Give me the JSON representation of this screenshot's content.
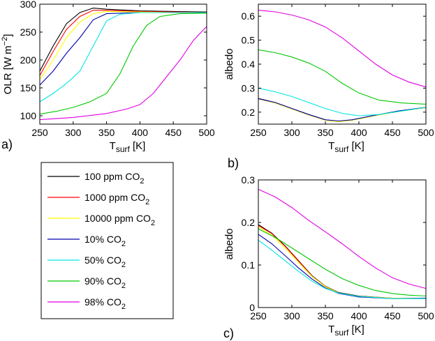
{
  "chart_data": [
    {
      "id": "a",
      "panel_label": "a)",
      "type": "line",
      "ylabel_main": "OLR [W m",
      "ylabel_sup": "−2",
      "ylabel_close": "]",
      "xlabel_main": "T",
      "xlabel_sub": "surf",
      "xlabel_unit": " [K]",
      "xlim": [
        250,
        500
      ],
      "ylim": [
        85,
        300
      ],
      "xticks": [
        250,
        300,
        350,
        400,
        450,
        500
      ],
      "yticks": [
        100,
        150,
        200,
        250,
        300
      ],
      "series": [
        {
          "name": "100 ppm CO2",
          "color": "#000000",
          "points": [
            [
              250,
              180
            ],
            [
              270,
              225
            ],
            [
              290,
              265
            ],
            [
              310,
              285
            ],
            [
              330,
              293
            ],
            [
              350,
              291
            ],
            [
              400,
              288
            ],
            [
              450,
              287
            ],
            [
              500,
              286
            ]
          ]
        },
        {
          "name": "1000 ppm CO2",
          "color": "#ff0000",
          "points": [
            [
              250,
              172
            ],
            [
              270,
              215
            ],
            [
              290,
              255
            ],
            [
              310,
              278
            ],
            [
              330,
              289
            ],
            [
              350,
              289
            ],
            [
              400,
              287
            ],
            [
              450,
              286
            ],
            [
              500,
              285
            ]
          ]
        },
        {
          "name": "10000 ppm CO2",
          "color": "#ffff00",
          "points": [
            [
              250,
              165
            ],
            [
              270,
              200
            ],
            [
              290,
              240
            ],
            [
              310,
              268
            ],
            [
              330,
              283
            ],
            [
              350,
              287
            ],
            [
              400,
              286
            ],
            [
              450,
              285
            ],
            [
              500,
              285
            ]
          ]
        },
        {
          "name": "10% CO2",
          "color": "#0000b0",
          "points": [
            [
              250,
              155
            ],
            [
              270,
              180
            ],
            [
              290,
              212
            ],
            [
              310,
              240
            ],
            [
              330,
              272
            ],
            [
              350,
              283
            ],
            [
              400,
              285
            ],
            [
              450,
              285
            ],
            [
              500,
              285
            ]
          ]
        },
        {
          "name": "50% CO2",
          "color": "#00e5e5",
          "points": [
            [
              250,
              125
            ],
            [
              270,
              140
            ],
            [
              290,
              158
            ],
            [
              310,
              180
            ],
            [
              330,
              225
            ],
            [
              350,
              270
            ],
            [
              370,
              282
            ],
            [
              400,
              285
            ],
            [
              450,
              285
            ],
            [
              500,
              285
            ]
          ]
        },
        {
          "name": "90% CO2",
          "color": "#00c800",
          "points": [
            [
              250,
              103
            ],
            [
              275,
              108
            ],
            [
              300,
              115
            ],
            [
              325,
              125
            ],
            [
              350,
              140
            ],
            [
              370,
              175
            ],
            [
              390,
              225
            ],
            [
              410,
              262
            ],
            [
              430,
              278
            ],
            [
              460,
              283
            ],
            [
              500,
              284
            ]
          ]
        },
        {
          "name": "98% CO2",
          "color": "#e000e0",
          "points": [
            [
              250,
              93
            ],
            [
              300,
              97
            ],
            [
              350,
              104
            ],
            [
              380,
              112
            ],
            [
              400,
              120
            ],
            [
              420,
              140
            ],
            [
              440,
              170
            ],
            [
              460,
              200
            ],
            [
              480,
              235
            ],
            [
              500,
              260
            ]
          ]
        }
      ]
    },
    {
      "id": "b",
      "panel_label": "b)",
      "type": "line",
      "ylabel": "albedo",
      "xlabel_main": "T",
      "xlabel_sub": "surf",
      "xlabel_unit": " [K]",
      "xlim": [
        250,
        500
      ],
      "ylim": [
        0.15,
        0.65
      ],
      "xticks": [
        250,
        300,
        350,
        400,
        450,
        500
      ],
      "yticks": [
        0.2,
        0.3,
        0.4,
        0.5,
        0.6
      ],
      "series": [
        {
          "name": "100 ppm CO2",
          "color": "#000000",
          "points": [
            [
              250,
              0.257
            ],
            [
              275,
              0.24
            ],
            [
              300,
              0.215
            ],
            [
              325,
              0.19
            ],
            [
              350,
              0.168
            ],
            [
              370,
              0.162
            ],
            [
              390,
              0.168
            ],
            [
              420,
              0.185
            ],
            [
              460,
              0.205
            ],
            [
              500,
              0.22
            ]
          ]
        },
        {
          "name": "1000 ppm CO2",
          "color": "#ff0000",
          "points": [
            [
              250,
              0.256
            ],
            [
              275,
              0.239
            ],
            [
              300,
              0.214
            ],
            [
              325,
              0.189
            ],
            [
              350,
              0.167
            ],
            [
              370,
              0.161
            ],
            [
              390,
              0.167
            ],
            [
              420,
              0.184
            ],
            [
              460,
              0.204
            ],
            [
              500,
              0.219
            ]
          ]
        },
        {
          "name": "10000 ppm CO2",
          "color": "#ffff00",
          "points": [
            [
              250,
              0.255
            ],
            [
              275,
              0.238
            ],
            [
              300,
              0.213
            ],
            [
              325,
              0.188
            ],
            [
              350,
              0.166
            ],
            [
              370,
              0.16
            ],
            [
              390,
              0.166
            ],
            [
              420,
              0.183
            ],
            [
              460,
              0.203
            ],
            [
              500,
              0.219
            ]
          ]
        },
        {
          "name": "10% CO2",
          "color": "#0000b0",
          "points": [
            [
              250,
              0.256
            ],
            [
              275,
              0.24
            ],
            [
              300,
              0.215
            ],
            [
              325,
              0.19
            ],
            [
              350,
              0.168
            ],
            [
              370,
              0.163
            ],
            [
              390,
              0.168
            ],
            [
              420,
              0.185
            ],
            [
              460,
              0.205
            ],
            [
              500,
              0.22
            ]
          ]
        },
        {
          "name": "50% CO2",
          "color": "#00e5e5",
          "points": [
            [
              250,
              0.3
            ],
            [
              275,
              0.285
            ],
            [
              300,
              0.265
            ],
            [
              325,
              0.24
            ],
            [
              350,
              0.215
            ],
            [
              375,
              0.195
            ],
            [
              400,
              0.185
            ],
            [
              430,
              0.19
            ],
            [
              465,
              0.205
            ],
            [
              500,
              0.22
            ]
          ]
        },
        {
          "name": "90% CO2",
          "color": "#00c800",
          "points": [
            [
              250,
              0.46
            ],
            [
              275,
              0.448
            ],
            [
              300,
              0.43
            ],
            [
              325,
              0.405
            ],
            [
              350,
              0.37
            ],
            [
              375,
              0.32
            ],
            [
              400,
              0.28
            ],
            [
              430,
              0.25
            ],
            [
              465,
              0.238
            ],
            [
              500,
              0.233
            ]
          ]
        },
        {
          "name": "98% CO2",
          "color": "#e000e0",
          "points": [
            [
              250,
              0.625
            ],
            [
              275,
              0.618
            ],
            [
              300,
              0.605
            ],
            [
              325,
              0.585
            ],
            [
              350,
              0.555
            ],
            [
              375,
              0.51
            ],
            [
              400,
              0.455
            ],
            [
              425,
              0.4
            ],
            [
              450,
              0.355
            ],
            [
              475,
              0.325
            ],
            [
              500,
              0.305
            ]
          ]
        }
      ]
    },
    {
      "id": "c",
      "panel_label": "c)",
      "type": "line",
      "ylabel": "albedo",
      "xlabel_main": "T",
      "xlabel_sub": "surf",
      "xlabel_unit": " [K]",
      "xlim": [
        250,
        500
      ],
      "ylim": [
        0,
        0.3
      ],
      "xticks": [
        250,
        300,
        350,
        400,
        450,
        500
      ],
      "yticks": [
        0,
        0.1,
        0.2,
        0.3
      ],
      "series": [
        {
          "name": "100 ppm CO2",
          "color": "#000000",
          "points": [
            [
              250,
              0.195
            ],
            [
              270,
              0.175
            ],
            [
              290,
              0.145
            ],
            [
              310,
              0.11
            ],
            [
              330,
              0.075
            ],
            [
              350,
              0.05
            ],
            [
              370,
              0.035
            ],
            [
              400,
              0.027
            ],
            [
              450,
              0.022
            ],
            [
              500,
              0.022
            ]
          ]
        },
        {
          "name": "1000 ppm CO2",
          "color": "#ff0000",
          "points": [
            [
              250,
              0.193
            ],
            [
              270,
              0.174
            ],
            [
              290,
              0.144
            ],
            [
              310,
              0.109
            ],
            [
              330,
              0.074
            ],
            [
              350,
              0.049
            ],
            [
              370,
              0.034
            ],
            [
              400,
              0.026
            ],
            [
              450,
              0.022
            ],
            [
              500,
              0.022
            ]
          ]
        },
        {
          "name": "10000 ppm CO2",
          "color": "#ffff00",
          "points": [
            [
              250,
              0.19
            ],
            [
              270,
              0.17
            ],
            [
              290,
              0.14
            ],
            [
              310,
              0.106
            ],
            [
              330,
              0.073
            ],
            [
              350,
              0.049
            ],
            [
              370,
              0.034
            ],
            [
              400,
              0.026
            ],
            [
              450,
              0.022
            ],
            [
              500,
              0.022
            ]
          ]
        },
        {
          "name": "10% CO2",
          "color": "#0000b0",
          "points": [
            [
              250,
              0.172
            ],
            [
              270,
              0.15
            ],
            [
              290,
              0.122
            ],
            [
              310,
              0.093
            ],
            [
              330,
              0.067
            ],
            [
              350,
              0.046
            ],
            [
              370,
              0.033
            ],
            [
              400,
              0.025
            ],
            [
              450,
              0.021
            ],
            [
              500,
              0.022
            ]
          ]
        },
        {
          "name": "50% CO2",
          "color": "#00e5e5",
          "points": [
            [
              250,
              0.158
            ],
            [
              270,
              0.135
            ],
            [
              290,
              0.11
            ],
            [
              310,
              0.085
            ],
            [
              330,
              0.062
            ],
            [
              350,
              0.045
            ],
            [
              370,
              0.034
            ],
            [
              400,
              0.026
            ],
            [
              450,
              0.021
            ],
            [
              500,
              0.021
            ]
          ]
        },
        {
          "name": "90% CO2",
          "color": "#00c800",
          "points": [
            [
              250,
              0.185
            ],
            [
              275,
              0.165
            ],
            [
              300,
              0.14
            ],
            [
              325,
              0.115
            ],
            [
              350,
              0.09
            ],
            [
              375,
              0.068
            ],
            [
              400,
              0.052
            ],
            [
              425,
              0.04
            ],
            [
              450,
              0.033
            ],
            [
              475,
              0.029
            ],
            [
              500,
              0.027
            ]
          ]
        },
        {
          "name": "98% CO2",
          "color": "#e000e0",
          "points": [
            [
              250,
              0.278
            ],
            [
              275,
              0.26
            ],
            [
              300,
              0.235
            ],
            [
              325,
              0.205
            ],
            [
              350,
              0.178
            ],
            [
              375,
              0.15
            ],
            [
              400,
              0.12
            ],
            [
              425,
              0.093
            ],
            [
              450,
              0.07
            ],
            [
              475,
              0.055
            ],
            [
              500,
              0.045
            ]
          ]
        }
      ]
    }
  ],
  "legend": {
    "items": [
      {
        "name": "100 ppm CO",
        "sub": "2",
        "color": "#000000"
      },
      {
        "name": "1000 ppm CO",
        "sub": "2",
        "color": "#ff0000"
      },
      {
        "name": "10000 ppm CO",
        "sub": "2",
        "color": "#ffff00"
      },
      {
        "name": "10% CO",
        "sub": "2",
        "color": "#0000b0"
      },
      {
        "name": "50% CO",
        "sub": "2",
        "color": "#00e5e5"
      },
      {
        "name": "90% CO",
        "sub": "2",
        "color": "#00c800"
      },
      {
        "name": "98% CO",
        "sub": "2",
        "color": "#e000e0"
      }
    ]
  }
}
